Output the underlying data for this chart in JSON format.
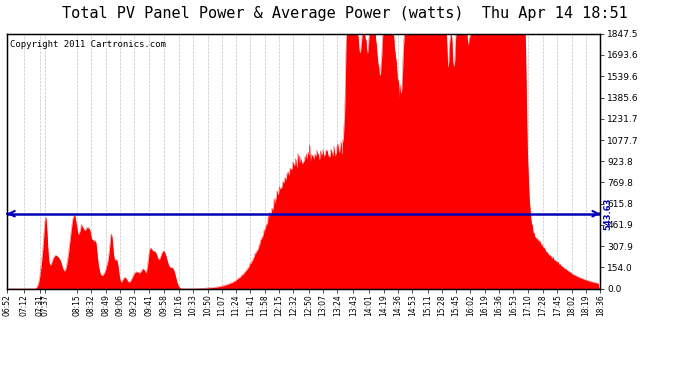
{
  "title": "Total PV Panel Power & Average Power (watts)  Thu Apr 14 18:51",
  "copyright": "Copyright 2011 Cartronics.com",
  "average_value": 543.63,
  "y_max": 1847.5,
  "y_min": 0.0,
  "y_ticks": [
    0.0,
    154.0,
    307.9,
    461.9,
    615.8,
    769.8,
    923.8,
    1077.7,
    1231.7,
    1385.6,
    1539.6,
    1693.6,
    1847.5
  ],
  "fill_color": "#FF0000",
  "avg_line_color": "#0000BB",
  "background_color": "#FFFFFF",
  "plot_bg_color": "#FFFFFF",
  "grid_color": "#AAAAAA",
  "title_fontsize": 11,
  "copyright_fontsize": 6.5,
  "x_labels": [
    "06:52",
    "07:12",
    "07:31",
    "07:37",
    "08:15",
    "08:32",
    "08:49",
    "09:06",
    "09:23",
    "09:41",
    "09:58",
    "10:16",
    "10:33",
    "10:50",
    "11:07",
    "11:24",
    "11:41",
    "11:58",
    "12:15",
    "12:32",
    "12:50",
    "13:07",
    "13:24",
    "13:43",
    "14:01",
    "14:19",
    "14:36",
    "14:53",
    "15:11",
    "15:28",
    "15:45",
    "16:02",
    "16:19",
    "16:36",
    "16:53",
    "17:10",
    "17:28",
    "17:45",
    "18:02",
    "18:19",
    "18:36"
  ]
}
